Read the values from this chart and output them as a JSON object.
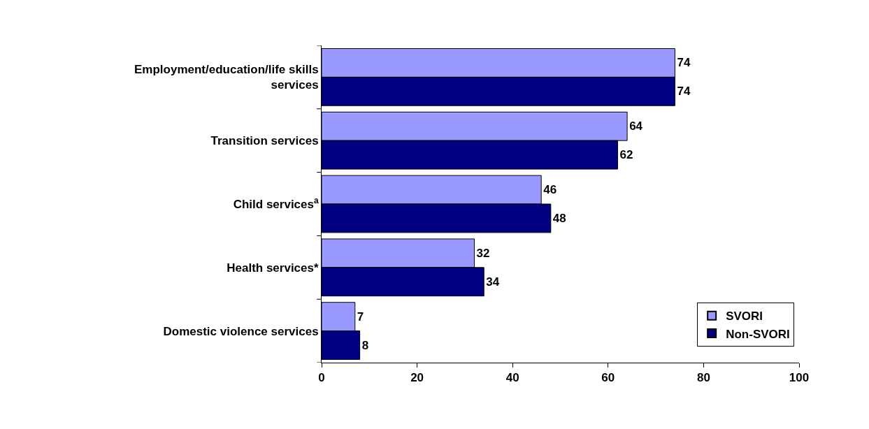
{
  "chart_data": {
    "type": "bar",
    "orientation": "horizontal",
    "categories": [
      "Employment/education/life skills services",
      "Transition services",
      "Child services$^{a}$",
      "Health services*",
      "Domestic violence services"
    ],
    "series": [
      {
        "name": "SVORI",
        "color": "#9999ff",
        "values": [
          74,
          64,
          46,
          32,
          7
        ]
      },
      {
        "name": "Non-SVORI",
        "color": "#000080",
        "values": [
          74,
          62,
          48,
          34,
          8
        ]
      }
    ],
    "xlim": [
      0,
      100
    ],
    "xticks": [
      0,
      20,
      40,
      60,
      80,
      100
    ],
    "data_labels": true,
    "legend": "bottom right"
  }
}
